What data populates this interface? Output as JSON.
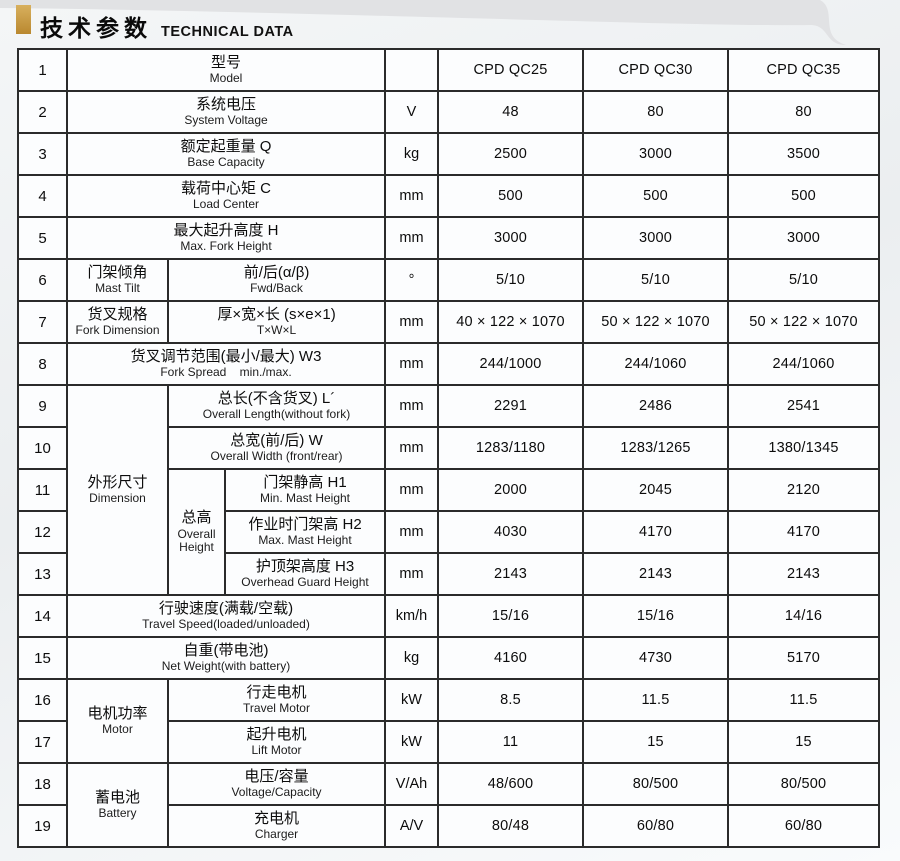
{
  "header": {
    "title_cn": "技术参数",
    "title_en": "TECHNICAL DATA",
    "accent_color": "#c89b42",
    "band_color": "#e1e2e4"
  },
  "table": {
    "rows": [
      {
        "num": "1",
        "label": {
          "cn": "型号",
          "en": "Model",
          "span": 3
        },
        "unit": "",
        "values": [
          "CPD QC25",
          "CPD QC30",
          "CPD QC35"
        ]
      },
      {
        "num": "2",
        "label": {
          "cn": "系统电压",
          "en": "System Voltage",
          "span": 3
        },
        "unit": "V",
        "values": [
          "48",
          "80",
          "80"
        ]
      },
      {
        "num": "3",
        "label": {
          "cn": "额定起重量  Q",
          "en": "Base Capacity",
          "span": 3
        },
        "unit": "kg",
        "values": [
          "2500",
          "3000",
          "3500"
        ]
      },
      {
        "num": "4",
        "label": {
          "cn": "载荷中心矩  C",
          "en": "Load Center",
          "span": 3
        },
        "unit": "mm",
        "values": [
          "500",
          "500",
          "500"
        ]
      },
      {
        "num": "5",
        "label": {
          "cn": "最大起升高度  H",
          "en": "Max. Fork Height",
          "span": 3
        },
        "unit": "mm",
        "values": [
          "3000",
          "3000",
          "3000"
        ]
      },
      {
        "num": "6",
        "group": {
          "cn": "门架倾角",
          "en": "Mast Tilt",
          "rowspan": 1
        },
        "label": {
          "cn": "前/后(α/β)",
          "en": "Fwd/Back",
          "span": 2
        },
        "unit": "°",
        "values": [
          "5/10",
          "5/10",
          "5/10"
        ]
      },
      {
        "num": "7",
        "group": {
          "cn": "货叉规格",
          "en": "Fork Dimension",
          "rowspan": 1
        },
        "label": {
          "cn": "厚×宽×长 (s×e×1)",
          "en": "T×W×L",
          "span": 2
        },
        "unit": "mm",
        "values": [
          "40 × 122 × 1070",
          "50 × 122 × 1070",
          "50 × 122 × 1070"
        ]
      },
      {
        "num": "8",
        "label": {
          "cn": "货叉调节范围(最小/最大) W3",
          "en": "Fork Spread    min./max.",
          "span": 3
        },
        "unit": "mm",
        "values": [
          "244/1000",
          "244/1060",
          "244/1060"
        ]
      },
      {
        "num": "9",
        "group": {
          "cn": "外形尺寸",
          "en": "Dimension",
          "rowspan": 5
        },
        "label": {
          "cn": "总长(不含货叉) L´",
          "en": "Overall Length(without fork)",
          "span": 2
        },
        "unit": "mm",
        "values": [
          "2291",
          "2486",
          "2541"
        ]
      },
      {
        "num": "10",
        "label": {
          "cn": "总宽(前/后) W",
          "en": "Overall Width (front/rear)",
          "span": 2
        },
        "unit": "mm",
        "values": [
          "1283/1180",
          "1283/1265",
          "1380/1345"
        ]
      },
      {
        "num": "11",
        "subgroup": {
          "cn": "总高",
          "en": "Overall Height",
          "rowspan": 3
        },
        "label": {
          "cn": "门架静高  H1",
          "en": "Min. Mast Height",
          "span": 1
        },
        "unit": "mm",
        "values": [
          "2000",
          "2045",
          "2120"
        ]
      },
      {
        "num": "12",
        "label": {
          "cn": "作业时门架高 H2",
          "en": "Max. Mast Height",
          "span": 1
        },
        "unit": "mm",
        "values": [
          "4030",
          "4170",
          "4170"
        ]
      },
      {
        "num": "13",
        "label": {
          "cn": "护顶架高度  H3",
          "en": "Overhead Guard Height",
          "span": 1
        },
        "unit": "mm",
        "values": [
          "2143",
          "2143",
          "2143"
        ]
      },
      {
        "num": "14",
        "label": {
          "cn": "行驶速度(满载/空载)",
          "en": "Travel Speed(loaded/unloaded)",
          "span": 3
        },
        "unit": "km/h",
        "values": [
          "15/16",
          "15/16",
          "14/16"
        ]
      },
      {
        "num": "15",
        "label": {
          "cn": "自重(带电池)",
          "en": "Net Weight(with battery)",
          "span": 3
        },
        "unit": "kg",
        "values": [
          "4160",
          "4730",
          "5170"
        ]
      },
      {
        "num": "16",
        "group": {
          "cn": "电机功率",
          "en": "Motor",
          "rowspan": 2
        },
        "label": {
          "cn": "行走电机",
          "en": "Travel Motor",
          "span": 2
        },
        "unit": "kW",
        "values": [
          "8.5",
          "11.5",
          "11.5"
        ]
      },
      {
        "num": "17",
        "label": {
          "cn": "起升电机",
          "en": "Lift Motor",
          "span": 2
        },
        "unit": "kW",
        "values": [
          "11",
          "15",
          "15"
        ]
      },
      {
        "num": "18",
        "group": {
          "cn": "蓄电池",
          "en": "Battery",
          "rowspan": 2
        },
        "label": {
          "cn": "电压/容量",
          "en": "Voltage/Capacity",
          "span": 2
        },
        "unit": "V/Ah",
        "values": [
          "48/600",
          "80/500",
          "80/500"
        ]
      },
      {
        "num": "19",
        "label": {
          "cn": "充电机",
          "en": "Charger",
          "span": 2
        },
        "unit": "A/V",
        "values": [
          "80/48",
          "60/80",
          "60/80"
        ]
      }
    ]
  }
}
